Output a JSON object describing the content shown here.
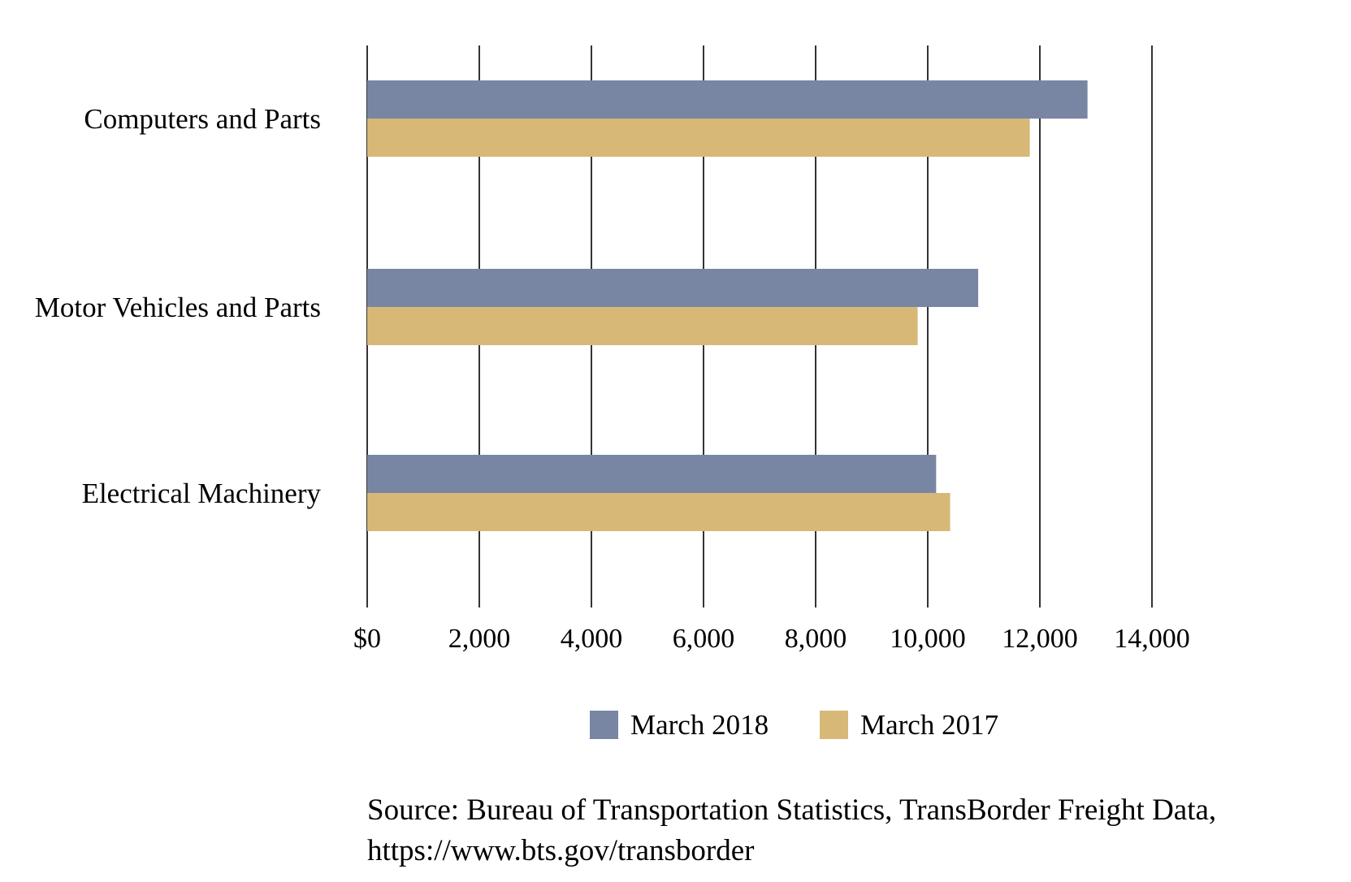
{
  "chart_data": {
    "type": "bar",
    "orientation": "horizontal",
    "categories": [
      "Computers and Parts",
      "Motor Vehicles and Parts",
      "Electrical Machinery"
    ],
    "series": [
      {
        "name": "March 2018",
        "color": "#7886a4",
        "values": [
          12850,
          10900,
          10150
        ]
      },
      {
        "name": "March 2017",
        "color": "#d7b877",
        "values": [
          11820,
          9820,
          10400
        ]
      }
    ],
    "x_ticks": [
      0,
      2000,
      4000,
      6000,
      8000,
      10000,
      12000,
      14000
    ],
    "x_tick_labels": [
      "$0",
      "2,000",
      "4,000",
      "6,000",
      "8,000",
      "10,000",
      "12,000",
      "14,000"
    ],
    "xlim": [
      0,
      14000
    ],
    "grid": "vertical",
    "legend_position": "bottom"
  },
  "source": {
    "line1": "Source: Bureau of Transportation Statistics, TransBorder Freight Data,",
    "line2": "https://www.bts.gov/transborder"
  }
}
